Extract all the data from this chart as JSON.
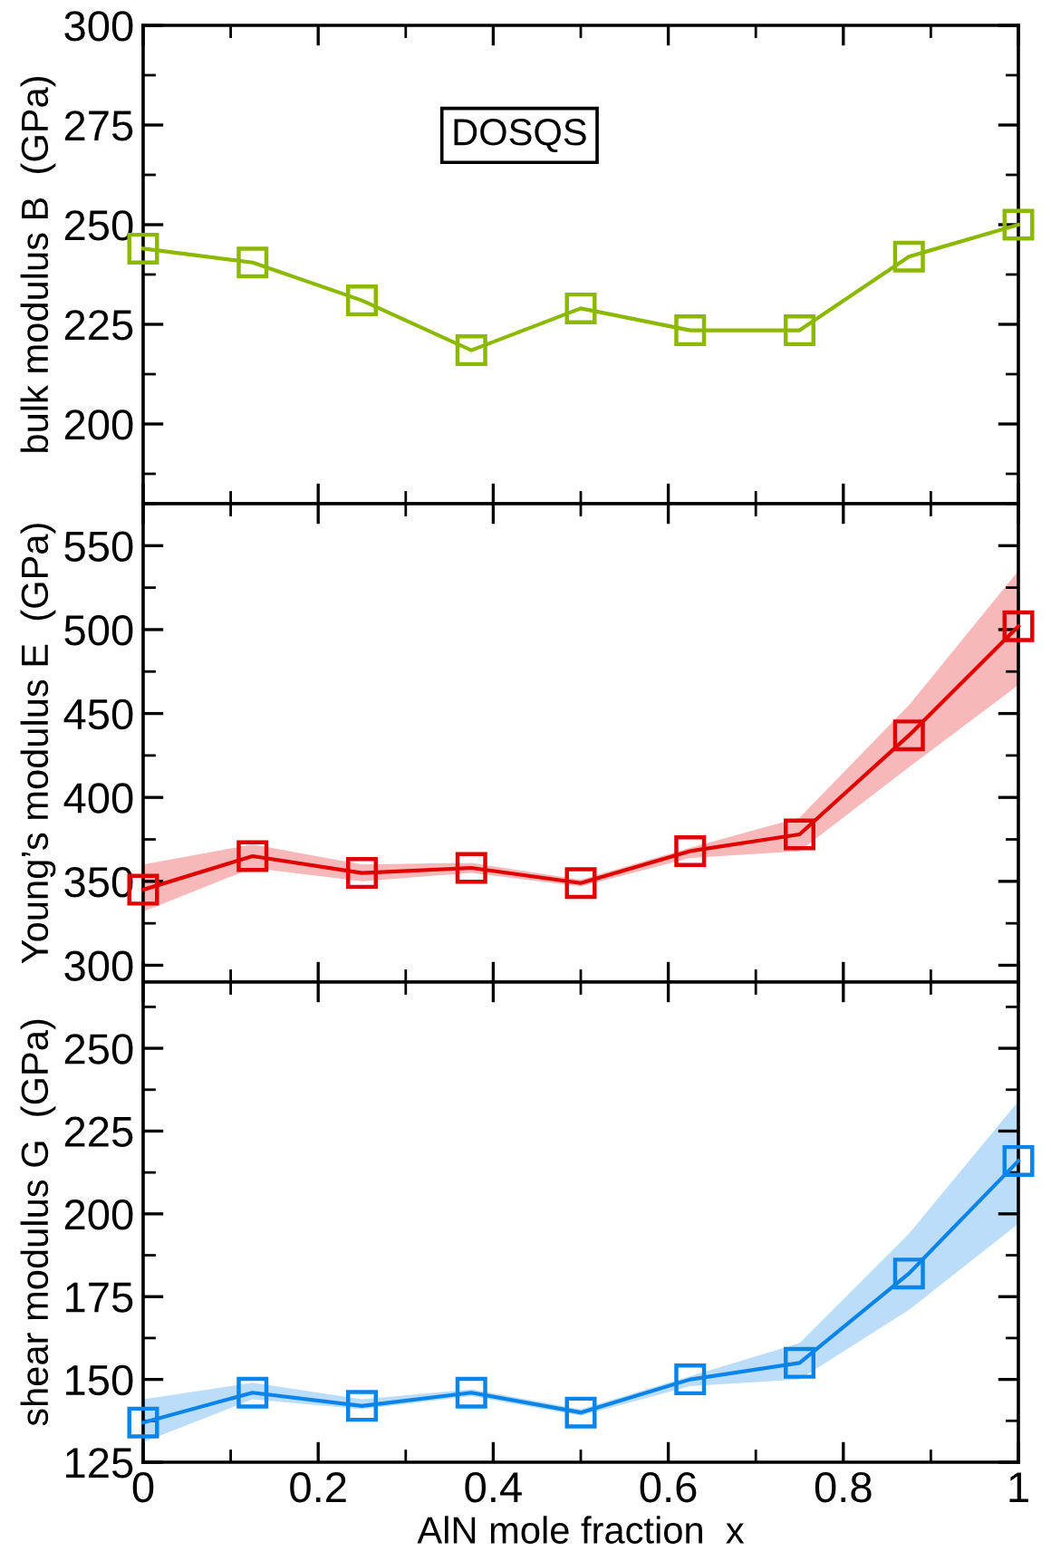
{
  "chart_data": [
    {
      "type": "line",
      "ylabel": "bulk modulus B  (GPa)",
      "annotations": [
        "DOSQS"
      ],
      "x": [
        0,
        0.125,
        0.25,
        0.375,
        0.5,
        0.625,
        0.75,
        0.875,
        1
      ],
      "series": [
        {
          "color": "#8cb800",
          "values": [
            244,
            240.5,
            231,
            218.5,
            229,
            223.5,
            223.5,
            242,
            250
          ]
        }
      ],
      "xlim": [
        0,
        1
      ],
      "xticks": [
        0,
        0.2,
        0.4,
        0.6,
        0.8,
        1
      ],
      "ylim": [
        180,
        300
      ],
      "yticks": [
        200,
        225,
        250,
        275,
        300
      ],
      "tick_labels": "y",
      "marker": "square",
      "grid": false,
      "legend": false
    },
    {
      "type": "line",
      "ylabel": "Young’s modulus E  (GPa)",
      "x": [
        0,
        0.125,
        0.25,
        0.375,
        0.5,
        0.625,
        0.75,
        0.875,
        1
      ],
      "series": [
        {
          "color": "#e00000",
          "values": [
            345,
            365,
            355,
            358,
            349,
            368,
            378,
            437,
            502
          ],
          "lower": [
            332,
            358,
            350,
            355,
            347,
            364,
            368,
            418,
            467
          ],
          "upper": [
            360,
            372,
            360,
            361,
            351,
            370,
            388,
            455,
            535
          ]
        }
      ],
      "xlim": [
        0,
        1
      ],
      "xticks": [
        0,
        0.2,
        0.4,
        0.6,
        0.8,
        1
      ],
      "ylim": [
        290,
        575
      ],
      "yticks": [
        300,
        350,
        400,
        450,
        500,
        550
      ],
      "tick_labels": "y",
      "marker": "square",
      "grid": false,
      "legend": false
    },
    {
      "type": "line",
      "ylabel": "shear modulus G  (GPa)",
      "xlabel": "AlN mole fraction  x",
      "x": [
        0,
        0.125,
        0.25,
        0.375,
        0.5,
        0.625,
        0.75,
        0.875,
        1
      ],
      "series": [
        {
          "color": "#0a84e8",
          "values": [
            137,
            146,
            142,
            146,
            140,
            150,
            155,
            182,
            216
          ],
          "lower": [
            131,
            144,
            141,
            145,
            139,
            148,
            150,
            171,
            197
          ],
          "upper": [
            144,
            149,
            144,
            147,
            141,
            151,
            161,
            194,
            234
          ]
        }
      ],
      "xlim": [
        0,
        1
      ],
      "xticks": [
        0,
        0.2,
        0.4,
        0.6,
        0.8,
        1
      ],
      "ylim": [
        125,
        270
      ],
      "yticks": [
        125,
        150,
        175,
        200,
        225,
        250
      ],
      "marker": "square",
      "grid": false,
      "legend": false
    }
  ]
}
